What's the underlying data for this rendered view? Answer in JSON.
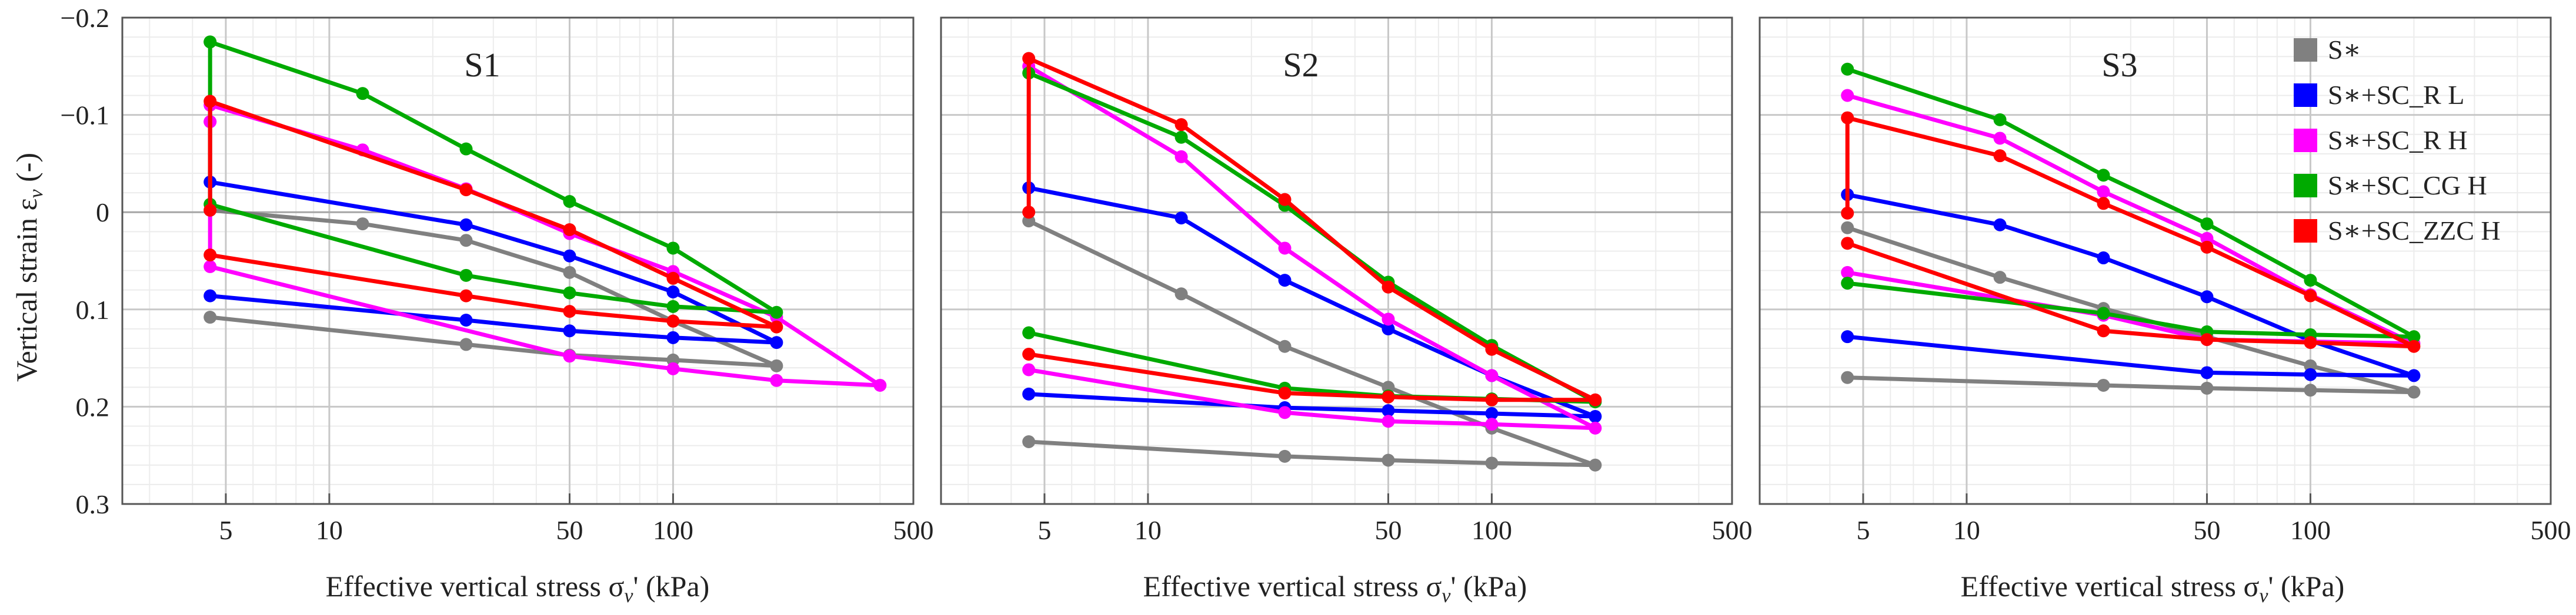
{
  "figure": {
    "y_axis_label": "Vertical strain ε",
    "y_axis_label_sub": "v",
    "y_axis_label_suffix": " (-)",
    "x_axis_label": "Effective vertical stress σ",
    "x_axis_label_sub": "v",
    "x_axis_label_suffix": "' (kPa)"
  },
  "legend": [
    {
      "label": "S∗",
      "color": "#808080"
    },
    {
      "label": "S∗+SC_R L",
      "color": "#0000ff"
    },
    {
      "label": "S∗+SC_R H",
      "color": "#ff00ff"
    },
    {
      "label": "S∗+SC_CG H",
      "color": "#00aa00"
    },
    {
      "label": "S∗+SC_ZZC H",
      "color": "#ff0000"
    }
  ],
  "chart_data": [
    {
      "type": "line",
      "title": "S1",
      "xlabel": "Effective vertical stress σv' (kPa)",
      "ylabel": "Vertical strain εv (-)",
      "xscale": "log",
      "xlim": [
        2.5,
        500
      ],
      "ylim": [
        -0.2,
        0.3
      ],
      "y_inverted": true,
      "xticks": [
        5,
        10,
        50,
        100,
        500
      ],
      "xtick_labels": [
        "5",
        "10",
        "50",
        "100",
        "500"
      ],
      "yticks": [
        -0.2,
        -0.1,
        0,
        0.1,
        0.2,
        0.3
      ],
      "ytick_labels": [
        "−0.2",
        "−0.1",
        "0",
        "0.1",
        "0.2",
        "0.3"
      ],
      "grid": true,
      "series": [
        {
          "name": "S∗",
          "color": "#808080",
          "x": [
            4.5,
            12.5,
            25,
            50,
            100,
            200,
            100,
            50,
            25,
            4.5
          ],
          "y": [
            -0.002,
            0.012,
            0.029,
            0.062,
            0.112,
            0.158,
            0.152,
            0.147,
            0.136,
            0.108
          ]
        },
        {
          "name": "S∗+SC_R L",
          "color": "#0000ff",
          "x": [
            4.5,
            25,
            50,
            100,
            200,
            100,
            50,
            25,
            4.5
          ],
          "y": [
            -0.031,
            0.013,
            0.045,
            0.082,
            0.134,
            0.129,
            0.122,
            0.111,
            0.086
          ]
        },
        {
          "name": "S∗+SC_R H",
          "color": "#ff00ff",
          "x": [
            4.5,
            4.5,
            12.5,
            25,
            50,
            100,
            200,
            400,
            200,
            100,
            50,
            4.5,
            4.5
          ],
          "y": [
            -0.093,
            -0.11,
            -0.064,
            -0.024,
            0.022,
            0.061,
            0.108,
            0.178,
            0.173,
            0.161,
            0.148,
            0.056,
            -0.093
          ]
        },
        {
          "name": "S∗+SC_CG H",
          "color": "#00aa00",
          "x": [
            4.5,
            12.5,
            25,
            50,
            100,
            200,
            100,
            50,
            25,
            4.5,
            4.5
          ],
          "y": [
            -0.175,
            -0.122,
            -0.065,
            -0.011,
            0.037,
            0.103,
            0.097,
            0.083,
            0.065,
            -0.008,
            -0.175
          ]
        },
        {
          "name": "S∗+SC_ZZC H",
          "color": "#ff0000",
          "x": [
            4.5,
            4.5,
            25,
            50,
            100,
            200,
            100,
            50,
            25,
            4.5
          ],
          "y": [
            -0.002,
            -0.114,
            -0.023,
            0.018,
            0.068,
            0.118,
            0.112,
            0.102,
            0.086,
            0.044
          ]
        }
      ]
    },
    {
      "type": "line",
      "title": "S2",
      "xlabel": "Effective vertical stress σv' (kPa)",
      "ylabel": "",
      "xscale": "log",
      "xlim": [
        2.5,
        500
      ],
      "ylim": [
        -0.2,
        0.3
      ],
      "y_inverted": true,
      "xticks": [
        5,
        10,
        50,
        100,
        500
      ],
      "xtick_labels": [
        "5",
        "10",
        "50",
        "100",
        "500"
      ],
      "grid": true,
      "series": [
        {
          "name": "S∗",
          "color": "#808080",
          "x": [
            4.5,
            12.5,
            25,
            50,
            100,
            200,
            100,
            50,
            25,
            4.5
          ],
          "y": [
            0.009,
            0.084,
            0.138,
            0.18,
            0.222,
            0.26,
            0.258,
            0.255,
            0.251,
            0.236
          ]
        },
        {
          "name": "S∗+SC_R L",
          "color": "#0000ff",
          "x": [
            4.5,
            12.5,
            25,
            50,
            100,
            200,
            100,
            50,
            25,
            4.5
          ],
          "y": [
            -0.025,
            0.006,
            0.07,
            0.12,
            0.168,
            0.21,
            0.207,
            0.204,
            0.201,
            0.187
          ]
        },
        {
          "name": "S∗+SC_R H",
          "color": "#ff00ff",
          "x": [
            4.5,
            12.5,
            25,
            50,
            100,
            200,
            100,
            50,
            25,
            4.5
          ],
          "y": [
            -0.15,
            -0.057,
            0.037,
            0.11,
            0.168,
            0.222,
            0.218,
            0.215,
            0.206,
            0.162
          ]
        },
        {
          "name": "S∗+SC_CG H",
          "color": "#00aa00",
          "x": [
            4.5,
            12.5,
            25,
            50,
            100,
            200,
            100,
            50,
            25,
            4.5
          ],
          "y": [
            -0.143,
            -0.077,
            -0.007,
            0.072,
            0.137,
            0.195,
            0.192,
            0.189,
            0.181,
            0.124
          ]
        },
        {
          "name": "S∗+SC_ZZC H",
          "color": "#ff0000",
          "x": [
            4.5,
            4.5,
            12.5,
            25,
            50,
            100,
            200,
            100,
            50,
            25,
            4.5
          ],
          "y": [
            0.0,
            -0.158,
            -0.09,
            -0.013,
            0.077,
            0.141,
            0.193,
            0.193,
            0.19,
            0.186,
            0.146
          ]
        }
      ]
    },
    {
      "type": "line",
      "title": "S3",
      "xlabel": "Effective vertical stress σv' (kPa)",
      "ylabel": "",
      "xscale": "log",
      "xlim": [
        2.5,
        500
      ],
      "ylim": [
        -0.2,
        0.3
      ],
      "y_inverted": true,
      "xticks": [
        5,
        10,
        50,
        100,
        500
      ],
      "xtick_labels": [
        "5",
        "10",
        "50",
        "100",
        "500"
      ],
      "grid": true,
      "series": [
        {
          "name": "S∗",
          "color": "#808080",
          "x": [
            4.5,
            12.5,
            25,
            50,
            100,
            200,
            100,
            50,
            25,
            4.5
          ],
          "y": [
            0.016,
            0.067,
            0.099,
            0.128,
            0.158,
            0.185,
            0.183,
            0.181,
            0.178,
            0.17
          ]
        },
        {
          "name": "S∗+SC_R L",
          "color": "#0000ff",
          "x": [
            4.5,
            12.5,
            25,
            50,
            100,
            200,
            100,
            50,
            4.5
          ],
          "y": [
            -0.018,
            0.013,
            0.047,
            0.087,
            0.132,
            0.168,
            0.167,
            0.165,
            0.128
          ]
        },
        {
          "name": "S∗+SC_R H",
          "color": "#ff00ff",
          "x": [
            4.5,
            12.5,
            25,
            50,
            100,
            200,
            100,
            50,
            25,
            4.5
          ],
          "y": [
            -0.12,
            -0.076,
            -0.021,
            0.027,
            0.085,
            0.135,
            0.133,
            0.131,
            0.106,
            0.062
          ]
        },
        {
          "name": "S∗+SC_CG H",
          "color": "#00aa00",
          "x": [
            4.5,
            12.5,
            25,
            50,
            100,
            200,
            100,
            50,
            25,
            4.5
          ],
          "y": [
            -0.147,
            -0.095,
            -0.038,
            0.012,
            0.07,
            0.128,
            0.126,
            0.123,
            0.104,
            0.073
          ]
        },
        {
          "name": "S∗+SC_ZZC H",
          "color": "#ff0000",
          "x": [
            4.5,
            4.5,
            12.5,
            25,
            50,
            100,
            200,
            100,
            50,
            25,
            4.5
          ],
          "y": [
            0.001,
            -0.097,
            -0.058,
            -0.009,
            0.036,
            0.086,
            0.138,
            0.134,
            0.131,
            0.122,
            0.032
          ]
        }
      ]
    }
  ]
}
